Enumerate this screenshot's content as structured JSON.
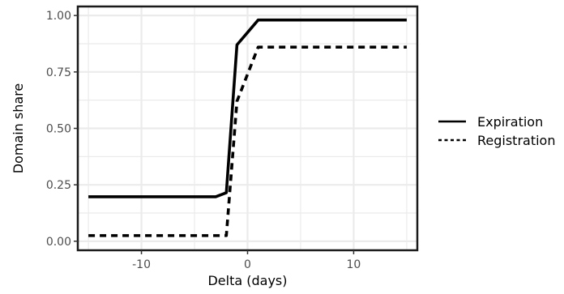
{
  "chart_data": {
    "type": "line",
    "title": "",
    "xlabel": "Delta (days)",
    "ylabel": "Domain share",
    "xlim": [
      -16,
      16
    ],
    "ylim": [
      -0.04,
      1.04
    ],
    "x_ticks": [
      -10,
      0,
      10
    ],
    "x_tick_labels": [
      "-10",
      "0",
      "10"
    ],
    "y_ticks": [
      0,
      0.25,
      0.5,
      0.75,
      1
    ],
    "y_tick_labels": [
      "0.00",
      "0.25",
      "0.50",
      "0.75",
      "1.00"
    ],
    "grid": true,
    "legend_position": "right",
    "series": [
      {
        "name": "Expiration",
        "line_style": "solid",
        "color": "#000000",
        "x": [
          -15,
          -14,
          -13,
          -12,
          -11,
          -10,
          -9,
          -8,
          -7,
          -6,
          -5,
          -4,
          -3,
          -2,
          -1,
          0,
          1,
          2,
          3,
          4,
          5,
          6,
          7,
          8,
          9,
          10,
          11,
          12,
          13,
          14,
          15
        ],
        "y": [
          0.197,
          0.197,
          0.197,
          0.197,
          0.197,
          0.197,
          0.197,
          0.197,
          0.197,
          0.197,
          0.197,
          0.197,
          0.197,
          0.215,
          0.87,
          0.925,
          0.98,
          0.98,
          0.98,
          0.98,
          0.98,
          0.98,
          0.98,
          0.98,
          0.98,
          0.98,
          0.98,
          0.98,
          0.98,
          0.98,
          0.98
        ]
      },
      {
        "name": "Registration",
        "line_style": "dashed",
        "color": "#000000",
        "x": [
          -15,
          -14,
          -13,
          -12,
          -11,
          -10,
          -9,
          -8,
          -7,
          -6,
          -5,
          -4,
          -3,
          -2,
          -1,
          0,
          1,
          2,
          3,
          4,
          5,
          6,
          7,
          8,
          9,
          10,
          11,
          12,
          13,
          14,
          15
        ],
        "y": [
          0.025,
          0.025,
          0.025,
          0.025,
          0.025,
          0.025,
          0.025,
          0.025,
          0.025,
          0.025,
          0.025,
          0.025,
          0.025,
          0.025,
          0.62,
          0.74,
          0.86,
          0.86,
          0.86,
          0.86,
          0.86,
          0.86,
          0.86,
          0.86,
          0.86,
          0.86,
          0.86,
          0.86,
          0.86,
          0.86,
          0.86
        ]
      }
    ]
  }
}
